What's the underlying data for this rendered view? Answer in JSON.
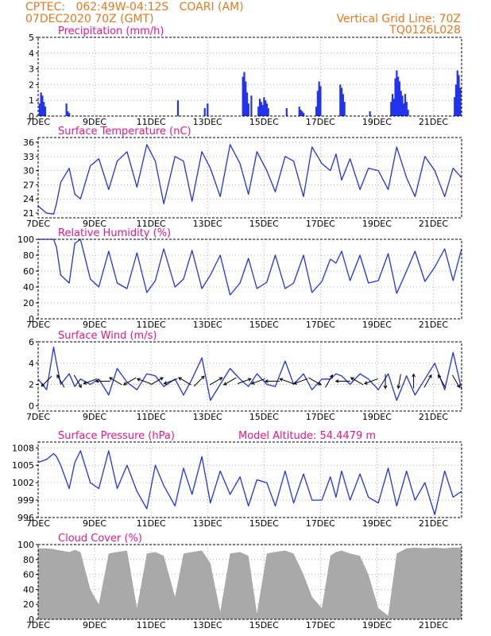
{
  "header": {
    "line1_left": "CPTEC:   062:49W-04:12S   COARI (AM)",
    "line2_left": "07DEC2020 70Z (GMT)",
    "line1_right": "Vertical Grid Line: 70Z",
    "line2_right": "TQ0126L028"
  },
  "colors": {
    "header": "#e07a22",
    "title": "#e0188a",
    "line": "#2233dd",
    "bar": "#2233ee",
    "cloud": "#a9a9a9"
  },
  "chart_data": [
    {
      "type": "bar",
      "title": "Precipitation (mm/h)",
      "ylim": [
        0,
        5
      ],
      "yticks": [
        0,
        1,
        2,
        3,
        4,
        5
      ],
      "xticks": [
        "7DEC",
        "9DEC",
        "11DEC",
        "13DEC",
        "15DEC",
        "17DEC",
        "19DEC",
        "21DEC"
      ],
      "xlim_days": [
        7,
        22
      ],
      "x_day": [
        7.05,
        7.1,
        7.15,
        7.2,
        7.25,
        8.0,
        8.05,
        8.1,
        11.95,
        12.9,
        13.0,
        14.25,
        14.3,
        14.35,
        14.4,
        14.45,
        14.55,
        14.8,
        14.85,
        14.9,
        14.95,
        15.0,
        15.05,
        15.1,
        15.15,
        15.8,
        16.25,
        16.3,
        16.35,
        16.4,
        16.85,
        16.9,
        16.95,
        17.0,
        17.7,
        17.75,
        17.8,
        17.85,
        18.75,
        19.5,
        19.55,
        19.6,
        19.65,
        19.7,
        19.75,
        19.8,
        19.85,
        19.9,
        19.95,
        20.0,
        20.05,
        20.1,
        21.75,
        21.8,
        21.85,
        21.9,
        21.95
      ],
      "values": [
        0.8,
        1.5,
        1.3,
        0.9,
        0.6,
        0.8,
        0.3,
        0.2,
        1.0,
        0.5,
        0.8,
        2.5,
        2.8,
        2.2,
        1.5,
        0.8,
        1.3,
        0.6,
        1.1,
        0.9,
        0.7,
        1.2,
        1.0,
        0.8,
        0.5,
        0.5,
        0.6,
        0.4,
        0.3,
        0.2,
        0.6,
        1.6,
        2.2,
        1.9,
        2.0,
        1.8,
        1.4,
        0.9,
        0.3,
        0.9,
        1.4,
        1.1,
        2.4,
        2.9,
        2.5,
        2.2,
        1.6,
        1.3,
        0.8,
        1.4,
        0.9,
        0.4,
        1.2,
        2.0,
        2.9,
        2.6,
        1.8
      ]
    },
    {
      "type": "line",
      "title": "Surface Temperature (nC)",
      "ylim": [
        20,
        37
      ],
      "yticks": [
        21,
        24,
        27,
        30,
        33,
        36
      ],
      "xticks": [
        "7DEC",
        "9DEC",
        "11DEC",
        "13DEC",
        "15DEC",
        "17DEC",
        "19DEC",
        "21DEC"
      ],
      "xlim_days": [
        7,
        22
      ],
      "x_day": [
        7.0,
        7.3,
        7.55,
        7.65,
        7.8,
        8.1,
        8.3,
        8.5,
        8.85,
        9.15,
        9.5,
        9.8,
        10.15,
        10.5,
        10.85,
        11.15,
        11.45,
        11.85,
        12.15,
        12.45,
        12.8,
        13.1,
        13.45,
        13.8,
        14.15,
        14.45,
        14.75,
        15.1,
        15.4,
        15.75,
        16.05,
        16.4,
        16.7,
        17.05,
        17.35,
        17.55,
        17.75,
        18.05,
        18.4,
        18.7,
        19.05,
        19.4,
        19.7,
        20.05,
        20.35,
        20.7,
        21.05,
        21.4,
        21.7,
        22.0
      ],
      "values": [
        22.5,
        21.0,
        20.8,
        23.0,
        27.5,
        30.5,
        25.0,
        24.0,
        31.0,
        32.5,
        26.0,
        32.0,
        34.0,
        26.5,
        35.5,
        32.0,
        23.0,
        33.0,
        32.0,
        23.5,
        34.0,
        30.5,
        24.5,
        35.5,
        31.5,
        25.0,
        34.0,
        30.0,
        25.5,
        33.0,
        32.0,
        24.5,
        35.0,
        31.5,
        30.0,
        33.5,
        28.0,
        32.5,
        26.0,
        30.5,
        30.0,
        26.0,
        35.0,
        28.5,
        24.5,
        33.0,
        30.0,
        24.5,
        30.5,
        28.5
      ]
    },
    {
      "type": "line",
      "title": "Relative Humidity (%)",
      "ylim": [
        0,
        100
      ],
      "yticks": [
        0,
        20,
        40,
        60,
        80,
        100
      ],
      "xticks": [
        "7DEC",
        "9DEC",
        "11DEC",
        "13DEC",
        "15DEC",
        "17DEC",
        "19DEC",
        "21DEC"
      ],
      "xlim_days": [
        7,
        22
      ],
      "x_day": [
        7.0,
        7.3,
        7.55,
        7.65,
        7.8,
        8.1,
        8.3,
        8.5,
        8.85,
        9.15,
        9.5,
        9.8,
        10.15,
        10.5,
        10.85,
        11.15,
        11.45,
        11.85,
        12.15,
        12.45,
        12.8,
        13.1,
        13.45,
        13.8,
        14.15,
        14.45,
        14.75,
        15.1,
        15.4,
        15.75,
        16.05,
        16.4,
        16.7,
        17.05,
        17.35,
        17.55,
        17.75,
        18.05,
        18.4,
        18.7,
        19.05,
        19.4,
        19.7,
        20.05,
        20.35,
        20.7,
        21.05,
        21.4,
        21.7,
        22.0
      ],
      "values": [
        100,
        100,
        100,
        90,
        55,
        45,
        95,
        100,
        50,
        40,
        85,
        45,
        38,
        83,
        33,
        48,
        88,
        40,
        50,
        86,
        38,
        55,
        80,
        30,
        45,
        76,
        38,
        46,
        80,
        38,
        45,
        80,
        33,
        47,
        75,
        70,
        85,
        48,
        80,
        45,
        48,
        82,
        32,
        60,
        85,
        47,
        65,
        88,
        48,
        88
      ]
    },
    {
      "type": "line",
      "title": "Surface Wind (m/s)",
      "ylim": [
        -0.5,
        6
      ],
      "yticks": [
        0,
        2,
        4,
        6
      ],
      "xticks": [
        "7DEC",
        "9DEC",
        "11DEC",
        "13DEC",
        "15DEC",
        "17DEC",
        "19DEC",
        "21DEC"
      ],
      "xlim_days": [
        7,
        22
      ],
      "x_day": [
        7.0,
        7.3,
        7.55,
        7.65,
        7.8,
        8.1,
        8.3,
        8.5,
        8.85,
        9.15,
        9.5,
        9.8,
        10.15,
        10.5,
        10.85,
        11.15,
        11.45,
        11.85,
        12.15,
        12.45,
        12.8,
        13.1,
        13.45,
        13.8,
        14.15,
        14.45,
        14.75,
        15.1,
        15.4,
        15.75,
        16.05,
        16.4,
        16.7,
        17.05,
        17.35,
        17.55,
        17.75,
        18.05,
        18.4,
        18.7,
        19.05,
        19.4,
        19.7,
        20.05,
        20.35,
        20.7,
        21.05,
        21.4,
        21.7,
        22.0
      ],
      "values": [
        2.5,
        1.5,
        5.5,
        4.0,
        2.0,
        3.0,
        1.8,
        2.5,
        2.0,
        2.5,
        1.0,
        3.5,
        2.2,
        1.5,
        3.0,
        2.8,
        1.8,
        2.5,
        1.0,
        2.5,
        4.5,
        0.5,
        2.0,
        3.5,
        2.5,
        1.8,
        3.0,
        2.0,
        1.8,
        4.2,
        2.0,
        3.0,
        1.5,
        2.5,
        2.5,
        3.0,
        2.8,
        2.0,
        3.0,
        2.5,
        1.5,
        3.0,
        0.5,
        2.8,
        1.0,
        2.5,
        4.0,
        1.5,
        5.0,
        1.5
      ],
      "arrows_day": [
        7.3,
        7.8,
        8.4,
        8.85,
        9.3,
        9.75,
        10.25,
        10.75,
        11.2,
        11.7,
        12.2,
        12.7,
        13.3,
        13.8,
        14.3,
        14.8,
        15.3,
        15.8,
        16.3,
        16.8,
        17.3,
        17.8,
        18.3,
        18.8,
        19.3,
        19.8,
        20.3,
        20.8,
        21.3,
        21.8
      ],
      "arrows_angle_deg": [
        225,
        120,
        300,
        200,
        180,
        150,
        210,
        160,
        30,
        200,
        150,
        45,
        30,
        210,
        20,
        200,
        180,
        160,
        200,
        330,
        60,
        180,
        150,
        200,
        270,
        260,
        90,
        60,
        120,
        300
      ]
    },
    {
      "type": "line",
      "title": "Surface Pressure (hPa)",
      "annotation": "Model Altitude: 54.4479 m",
      "ylim": [
        996,
        1009
      ],
      "yticks": [
        996,
        999,
        1002,
        1005,
        1008
      ],
      "xticks": [
        "7DEC",
        "9DEC",
        "11DEC",
        "13DEC",
        "15DEC",
        "17DEC",
        "19DEC",
        "21DEC"
      ],
      "xlim_days": [
        7,
        22
      ],
      "x_day": [
        7.0,
        7.3,
        7.55,
        7.65,
        7.8,
        8.1,
        8.3,
        8.5,
        8.85,
        9.15,
        9.5,
        9.8,
        10.15,
        10.5,
        10.85,
        11.15,
        11.45,
        11.85,
        12.15,
        12.45,
        12.8,
        13.1,
        13.45,
        13.8,
        14.15,
        14.45,
        14.75,
        15.1,
        15.4,
        15.75,
        16.05,
        16.4,
        16.7,
        17.05,
        17.35,
        17.55,
        17.75,
        18.05,
        18.4,
        18.7,
        19.05,
        19.4,
        19.7,
        20.05,
        20.35,
        20.7,
        21.05,
        21.4,
        21.7,
        22.0
      ],
      "values": [
        1005.5,
        1006.0,
        1007.0,
        1006.5,
        1005.0,
        1001.0,
        1005.5,
        1007.5,
        1002.0,
        1001.0,
        1007.5,
        1001.0,
        1005.0,
        1000.5,
        997.5,
        1005.0,
        1001.5,
        998.0,
        1004.5,
        1000.0,
        1006.5,
        998.5,
        1004.0,
        1000.0,
        1003.0,
        998.0,
        1002.5,
        1002.0,
        998.0,
        1004.0,
        998.5,
        1003.5,
        999.0,
        999.0,
        1003.0,
        999.5,
        1004.0,
        999.0,
        1003.5,
        999.5,
        998.5,
        1004.5,
        998.0,
        1004.0,
        999.0,
        1002.0,
        996.5,
        1004.0,
        999.5,
        1000.5
      ]
    },
    {
      "type": "area",
      "title": "Cloud Cover (%)",
      "ylim": [
        0,
        100
      ],
      "yticks": [
        0,
        20,
        40,
        60,
        80,
        100
      ],
      "xticks": [
        "7DEC",
        "9DEC",
        "11DEC",
        "13DEC",
        "15DEC",
        "17DEC",
        "19DEC",
        "21DEC"
      ],
      "xlim_days": [
        7,
        22
      ],
      "x_day": [
        7.0,
        7.3,
        7.55,
        7.65,
        7.8,
        8.1,
        8.3,
        8.5,
        8.85,
        9.15,
        9.5,
        9.8,
        10.15,
        10.5,
        10.85,
        11.15,
        11.45,
        11.85,
        12.15,
        12.45,
        12.8,
        13.1,
        13.45,
        13.8,
        14.15,
        14.45,
        14.75,
        15.1,
        15.4,
        15.75,
        16.05,
        16.4,
        16.7,
        17.05,
        17.35,
        17.55,
        17.75,
        18.05,
        18.4,
        18.7,
        19.05,
        19.4,
        19.7,
        20.05,
        20.35,
        20.7,
        21.05,
        21.4,
        21.7,
        22.0
      ],
      "values": [
        95,
        95,
        94,
        93,
        92,
        90,
        93,
        90,
        40,
        20,
        88,
        90,
        92,
        15,
        88,
        90,
        85,
        30,
        88,
        90,
        92,
        75,
        10,
        88,
        90,
        85,
        8,
        88,
        90,
        92,
        88,
        60,
        30,
        15,
        85,
        90,
        92,
        88,
        85,
        60,
        15,
        5,
        88,
        95,
        96,
        95,
        96,
        95,
        96,
        96
      ]
    }
  ]
}
